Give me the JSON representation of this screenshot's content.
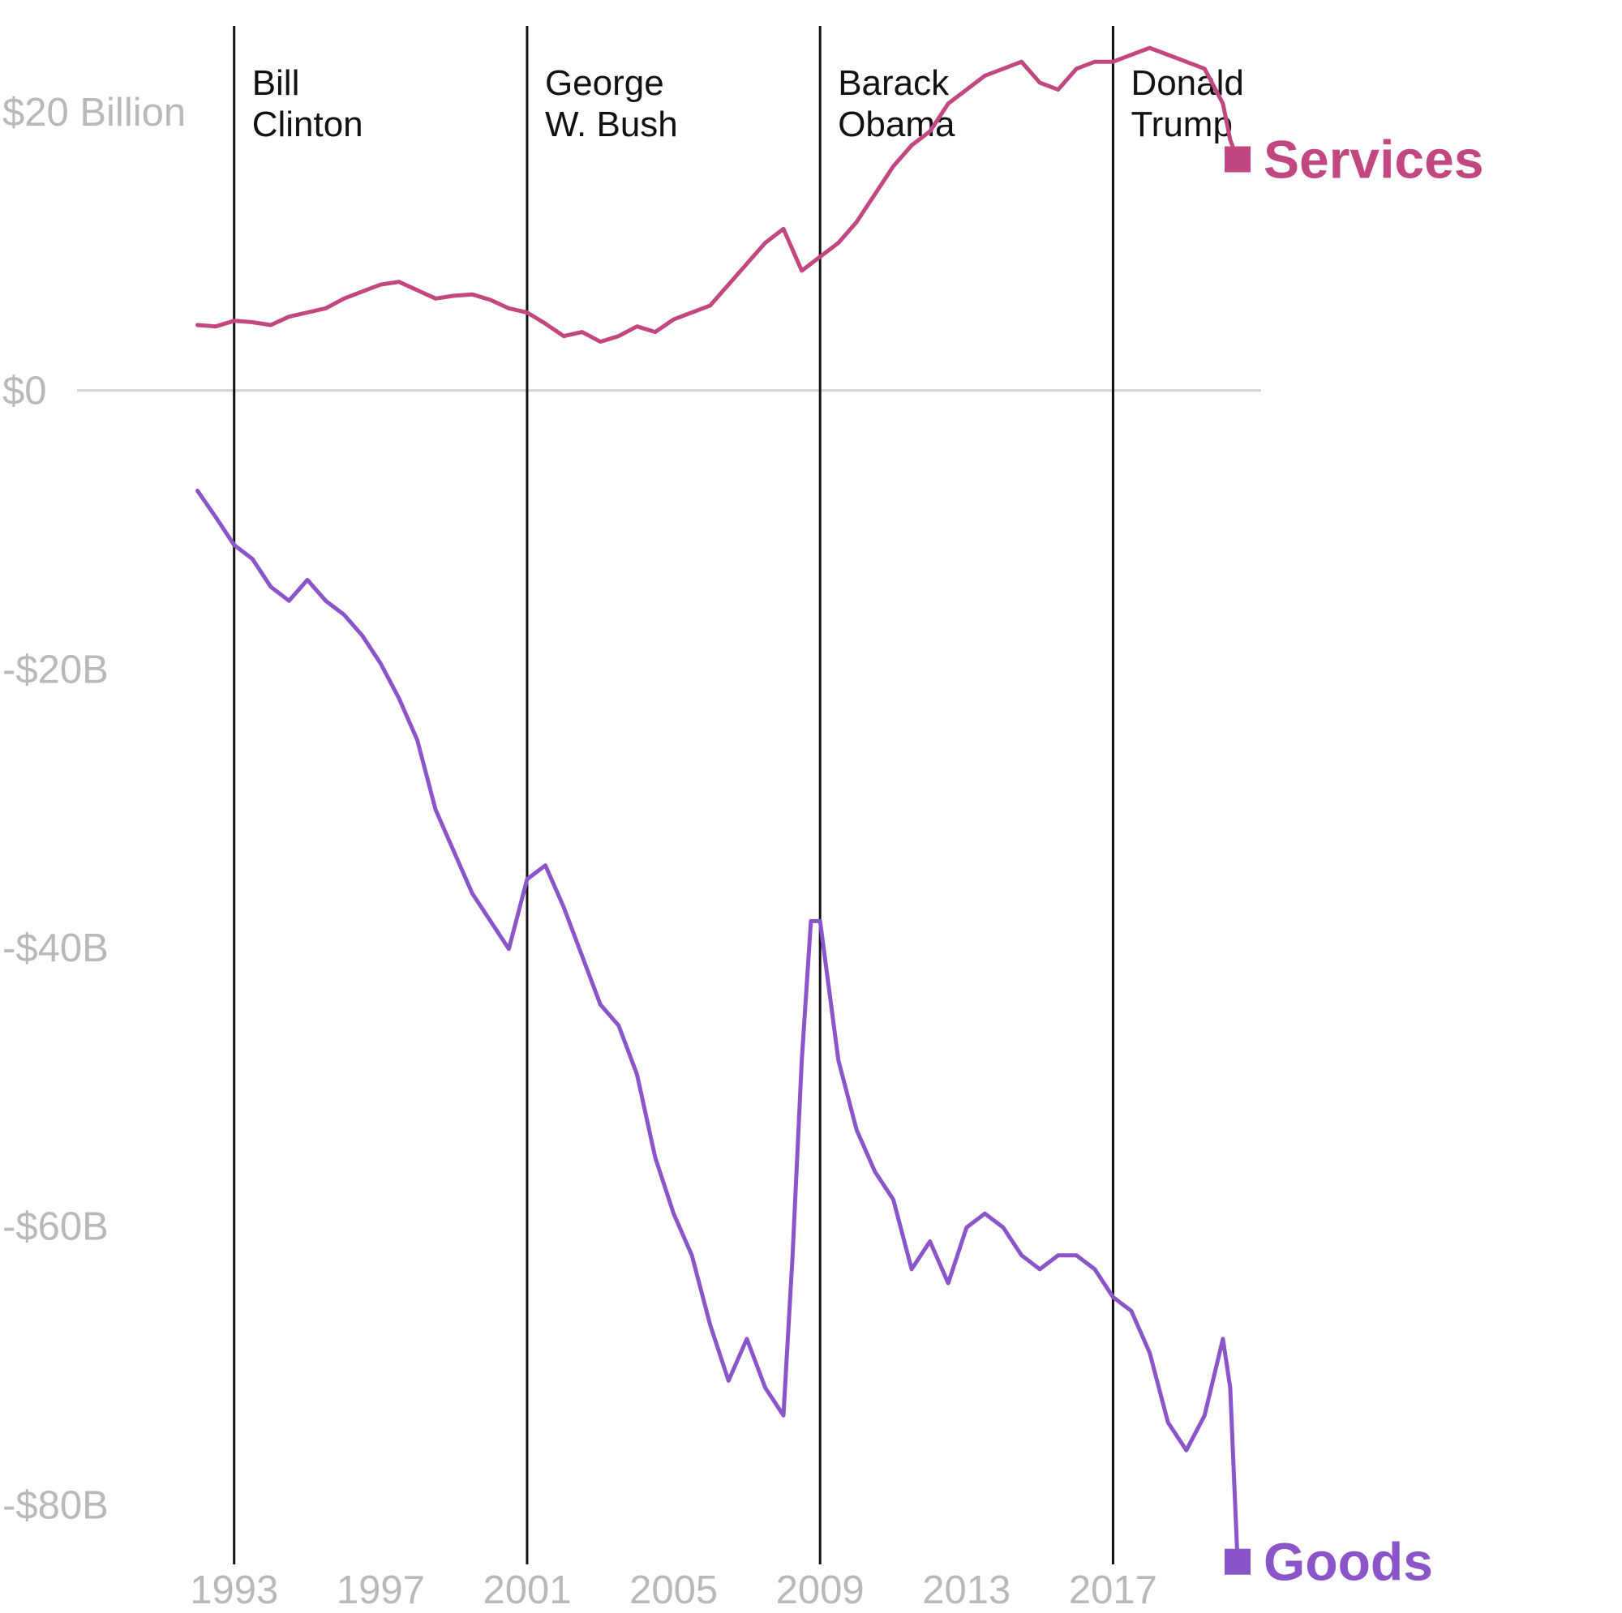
{
  "colors": {
    "services": "#c2467f",
    "goods": "#8a55c9",
    "zero_line": "#d4d4d4",
    "tick_text": "#b9b9b9",
    "term_line": "#111111"
  },
  "chart_data": {
    "type": "line",
    "title": "",
    "xlabel": "",
    "ylabel": "",
    "xlim": [
      1991.7,
      2020.6
    ],
    "ylim": [
      -84,
      26
    ],
    "grid": false,
    "x_ticks": [
      {
        "value": 1993,
        "label": "1993"
      },
      {
        "value": 1997,
        "label": "1997"
      },
      {
        "value": 2001,
        "label": "2001"
      },
      {
        "value": 2005,
        "label": "2005"
      },
      {
        "value": 2009,
        "label": "2009"
      },
      {
        "value": 2013,
        "label": "2013"
      },
      {
        "value": 2017,
        "label": "2017"
      }
    ],
    "y_ticks": [
      {
        "value": 20,
        "label": "$20 Billion"
      },
      {
        "value": 0,
        "label": "$0"
      },
      {
        "value": -20,
        "label": "-$20B"
      },
      {
        "value": -40,
        "label": "-$40B"
      },
      {
        "value": -60,
        "label": "-$60B"
      },
      {
        "value": -80,
        "label": "-$80B"
      }
    ],
    "annotations": [
      {
        "x": 1993,
        "line1": "Bill",
        "line2": "Clinton"
      },
      {
        "x": 2001,
        "line1": "George",
        "line2": "W. Bush"
      },
      {
        "x": 2009,
        "line1": "Barack",
        "line2": "Obama"
      },
      {
        "x": 2017,
        "line1": "Donald",
        "line2": "Trump"
      }
    ],
    "series": [
      {
        "name": "Services",
        "color": "#c2467f",
        "x": [
          1992,
          1992.5,
          1993,
          1993.5,
          1994,
          1994.5,
          1995,
          1995.5,
          1996,
          1996.5,
          1997,
          1997.5,
          1998,
          1998.5,
          1999,
          1999.5,
          2000,
          2000.5,
          2001,
          2001.5,
          2002,
          2002.5,
          2003,
          2003.5,
          2004,
          2004.5,
          2005,
          2005.5,
          2006,
          2006.5,
          2007,
          2007.5,
          2008,
          2008.5,
          2009,
          2009.5,
          2010,
          2010.5,
          2011,
          2011.5,
          2012,
          2012.5,
          2013,
          2013.5,
          2014,
          2014.5,
          2015,
          2015.5,
          2016,
          2016.5,
          2017,
          2017.5,
          2018,
          2018.5,
          2019,
          2019.5,
          2020,
          2020.2,
          2020.4
        ],
        "values": [
          4.7,
          4.6,
          5.0,
          4.9,
          4.7,
          5.3,
          5.6,
          5.9,
          6.6,
          7.1,
          7.6,
          7.8,
          7.2,
          6.6,
          6.8,
          6.9,
          6.5,
          5.9,
          5.6,
          4.8,
          3.9,
          4.2,
          3.5,
          3.9,
          4.6,
          4.2,
          5.1,
          5.6,
          6.1,
          7.6,
          9.1,
          10.6,
          11.6,
          8.6,
          9.6,
          10.6,
          12.1,
          14.1,
          16.1,
          17.6,
          18.6,
          20.6,
          21.6,
          22.6,
          23.1,
          23.6,
          22.1,
          21.6,
          23.1,
          23.6,
          23.6,
          24.1,
          24.6,
          24.1,
          23.6,
          23.1,
          20.6,
          18.0,
          16.6
        ]
      },
      {
        "name": "Goods",
        "color": "#8a55c9",
        "x": [
          1992,
          1992.5,
          1993,
          1993.5,
          1994,
          1994.5,
          1995,
          1995.5,
          1996,
          1996.5,
          1997,
          1997.5,
          1998,
          1998.5,
          1999,
          1999.5,
          2000,
          2000.5,
          2001,
          2001.5,
          2002,
          2002.5,
          2003,
          2003.5,
          2004,
          2004.5,
          2005,
          2005.5,
          2006,
          2006.5,
          2007,
          2007.5,
          2008,
          2008.25,
          2008.5,
          2008.75,
          2009,
          2009.5,
          2010,
          2010.5,
          2011,
          2011.5,
          2012,
          2012.5,
          2013,
          2013.5,
          2014,
          2014.5,
          2015,
          2015.5,
          2016,
          2016.5,
          2017,
          2017.5,
          2018,
          2018.5,
          2019,
          2019.5,
          2020,
          2020.2,
          2020.4
        ],
        "values": [
          -7.2,
          -9.1,
          -11.1,
          -12.1,
          -14.1,
          -15.1,
          -13.6,
          -15.1,
          -16.1,
          -17.6,
          -19.6,
          -22.1,
          -25.1,
          -30.1,
          -33.1,
          -36.1,
          -38.1,
          -40.1,
          -35.1,
          -34.1,
          -37.1,
          -40.6,
          -44.1,
          -45.6,
          -49.1,
          -55.1,
          -59.1,
          -62.1,
          -67.1,
          -71.1,
          -68.1,
          -71.6,
          -73.6,
          -62.1,
          -48.1,
          -38.1,
          -38.1,
          -48.1,
          -53.1,
          -56.1,
          -58.1,
          -63.1,
          -61.1,
          -64.1,
          -60.1,
          -59.1,
          -60.1,
          -62.1,
          -63.1,
          -62.1,
          -62.1,
          -63.1,
          -65.1,
          -66.1,
          -69.1,
          -74.1,
          -76.1,
          -73.6,
          -68.1,
          -71.6,
          -84.1
        ]
      }
    ]
  }
}
